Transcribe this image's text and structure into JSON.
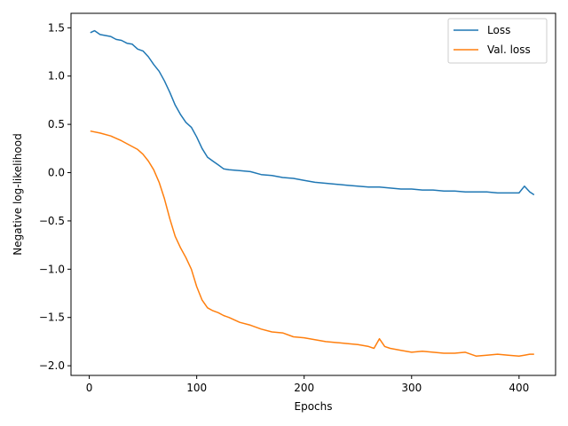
{
  "chart_data": {
    "type": "line",
    "title": "",
    "xlabel": "Epochs",
    "ylabel": "Negative log-likelihood",
    "xlim": [
      -17,
      434
    ],
    "ylim": [
      -2.1,
      1.65
    ],
    "x_ticks": [
      0,
      100,
      200,
      300,
      400
    ],
    "y_ticks": [
      1.5,
      1.0,
      0.5,
      0.0,
      -0.5,
      -1.0,
      -1.5,
      -2.0
    ],
    "x_tick_labels": [
      "0",
      "100",
      "200",
      "300",
      "400"
    ],
    "y_tick_labels": [
      "1.5",
      "1.0",
      "0.5",
      "0.0",
      "−0.5",
      "−1.0",
      "−1.5",
      "−2.0"
    ],
    "legend_position": "top-right",
    "grid": false,
    "series": [
      {
        "name": "Loss",
        "color": "#1f77b4",
        "x": [
          1,
          5,
          10,
          15,
          20,
          25,
          30,
          35,
          40,
          45,
          50,
          55,
          60,
          65,
          70,
          75,
          80,
          85,
          90,
          95,
          100,
          105,
          110,
          115,
          120,
          125,
          130,
          140,
          150,
          160,
          170,
          180,
          190,
          200,
          210,
          220,
          230,
          240,
          250,
          260,
          270,
          280,
          290,
          300,
          310,
          320,
          330,
          340,
          350,
          360,
          370,
          380,
          390,
          400,
          405,
          410,
          414
        ],
        "y": [
          1.45,
          1.47,
          1.43,
          1.42,
          1.41,
          1.38,
          1.37,
          1.34,
          1.33,
          1.28,
          1.26,
          1.2,
          1.12,
          1.05,
          0.95,
          0.83,
          0.7,
          0.6,
          0.52,
          0.47,
          0.37,
          0.25,
          0.16,
          0.12,
          0.08,
          0.04,
          0.03,
          0.02,
          0.01,
          -0.02,
          -0.03,
          -0.05,
          -0.06,
          -0.08,
          -0.1,
          -0.11,
          -0.12,
          -0.13,
          -0.14,
          -0.15,
          -0.15,
          -0.16,
          -0.17,
          -0.17,
          -0.18,
          -0.18,
          -0.19,
          -0.19,
          -0.2,
          -0.2,
          -0.2,
          -0.21,
          -0.21,
          -0.21,
          -0.14,
          -0.2,
          -0.23
        ]
      },
      {
        "name": "Val. loss",
        "color": "#ff7f0e",
        "x": [
          1,
          10,
          20,
          30,
          40,
          45,
          50,
          55,
          60,
          65,
          70,
          75,
          80,
          85,
          90,
          95,
          100,
          105,
          110,
          115,
          120,
          125,
          130,
          140,
          150,
          160,
          170,
          180,
          190,
          200,
          210,
          220,
          230,
          240,
          250,
          260,
          265,
          270,
          275,
          280,
          290,
          300,
          310,
          320,
          330,
          340,
          350,
          360,
          370,
          380,
          390,
          400,
          405,
          410,
          414
        ],
        "y": [
          0.43,
          0.41,
          0.38,
          0.33,
          0.27,
          0.24,
          0.19,
          0.12,
          0.03,
          -0.1,
          -0.27,
          -0.48,
          -0.66,
          -0.78,
          -0.88,
          -1.0,
          -1.18,
          -1.32,
          -1.4,
          -1.43,
          -1.45,
          -1.48,
          -1.5,
          -1.55,
          -1.58,
          -1.62,
          -1.65,
          -1.66,
          -1.7,
          -1.71,
          -1.73,
          -1.75,
          -1.76,
          -1.77,
          -1.78,
          -1.8,
          -1.82,
          -1.72,
          -1.8,
          -1.82,
          -1.84,
          -1.86,
          -1.85,
          -1.86,
          -1.87,
          -1.87,
          -1.86,
          -1.9,
          -1.89,
          -1.88,
          -1.89,
          -1.9,
          -1.89,
          -1.88,
          -1.88
        ]
      }
    ]
  }
}
